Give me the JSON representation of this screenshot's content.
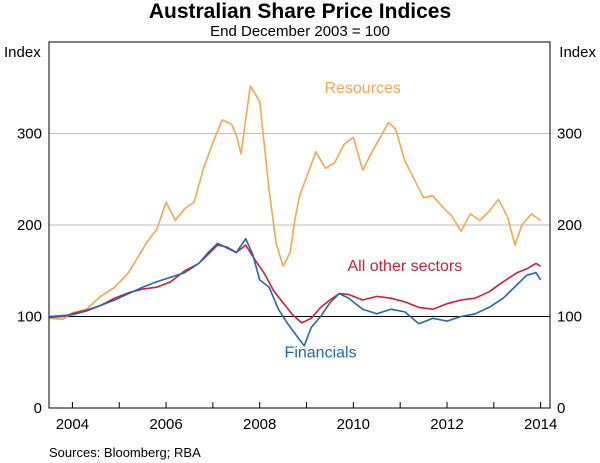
{
  "chart_data": {
    "type": "line",
    "title": "Australian Share Price Indices",
    "subtitle": "End December 2003 = 100",
    "ylabel_left": "Index",
    "ylabel_right": "Index",
    "source": "Sources: Bloomberg; RBA",
    "xlim": [
      2003.5,
      2014.2
    ],
    "ylim": [
      0,
      400
    ],
    "x_ticks": [
      2004,
      2006,
      2008,
      2010,
      2012,
      2014
    ],
    "x_tick_labels": [
      "2004",
      "2006",
      "2008",
      "2010",
      "2012",
      "2014"
    ],
    "y_ticks": [
      0,
      100,
      200,
      300
    ],
    "y_tick_labels": [
      "0",
      "100",
      "200",
      "300"
    ],
    "reference_line": 100,
    "grid": true,
    "series": [
      {
        "name": "Resources",
        "label": "Resources",
        "color": "#f5a64f",
        "x": [
          2003.5,
          2003.8,
          2004.0,
          2004.3,
          2004.6,
          2004.9,
          2005.2,
          2005.4,
          2005.6,
          2005.8,
          2006.0,
          2006.2,
          2006.4,
          2006.6,
          2006.8,
          2007.0,
          2007.2,
          2007.4,
          2007.5,
          2007.6,
          2007.8,
          2008.0,
          2008.2,
          2008.35,
          2008.5,
          2008.65,
          2008.75,
          2008.85,
          2009.0,
          2009.2,
          2009.4,
          2009.6,
          2009.8,
          2010.0,
          2010.2,
          2010.4,
          2010.6,
          2010.75,
          2010.9,
          2011.1,
          2011.3,
          2011.5,
          2011.7,
          2011.9,
          2012.1,
          2012.3,
          2012.5,
          2012.7,
          2012.9,
          2013.1,
          2013.3,
          2013.45,
          2013.6,
          2013.8,
          2014.0
        ],
        "y": [
          98,
          97,
          104,
          108,
          122,
          132,
          148,
          165,
          182,
          195,
          225,
          205,
          218,
          225,
          262,
          290,
          315,
          310,
          298,
          278,
          352,
          335,
          238,
          180,
          155,
          170,
          205,
          232,
          252,
          280,
          262,
          268,
          288,
          296,
          260,
          280,
          298,
          312,
          305,
          270,
          250,
          230,
          232,
          220,
          210,
          193,
          212,
          205,
          215,
          228,
          208,
          178,
          200,
          212,
          205
        ]
      },
      {
        "name": "All other sectors",
        "label": "All other sectors",
        "color": "#d0202e",
        "x": [
          2003.5,
          2003.8,
          2004.0,
          2004.3,
          2004.6,
          2004.9,
          2005.2,
          2005.5,
          2005.8,
          2006.1,
          2006.4,
          2006.7,
          2006.9,
          2007.1,
          2007.3,
          2007.5,
          2007.7,
          2007.9,
          2008.1,
          2008.3,
          2008.5,
          2008.7,
          2008.9,
          2009.1,
          2009.3,
          2009.5,
          2009.7,
          2009.9,
          2010.2,
          2010.5,
          2010.8,
          2011.1,
          2011.4,
          2011.7,
          2012.0,
          2012.3,
          2012.6,
          2012.9,
          2013.2,
          2013.5,
          2013.7,
          2013.9,
          2014.0
        ],
        "y": [
          99,
          100,
          103,
          107,
          112,
          120,
          126,
          130,
          132,
          138,
          150,
          158,
          168,
          178,
          176,
          170,
          178,
          162,
          147,
          128,
          115,
          102,
          93,
          98,
          110,
          118,
          125,
          124,
          118,
          122,
          120,
          116,
          110,
          108,
          114,
          118,
          120,
          127,
          138,
          148,
          152,
          158,
          155
        ]
      },
      {
        "name": "Financials",
        "label": "Financials",
        "color": "#1f68b3",
        "x": [
          2003.5,
          2003.8,
          2004.0,
          2004.3,
          2004.6,
          2004.9,
          2005.2,
          2005.5,
          2005.8,
          2006.1,
          2006.4,
          2006.7,
          2006.9,
          2007.1,
          2007.3,
          2007.5,
          2007.7,
          2007.85,
          2008.0,
          2008.2,
          2008.4,
          2008.6,
          2008.8,
          2008.95,
          2009.1,
          2009.3,
          2009.5,
          2009.7,
          2009.9,
          2010.2,
          2010.5,
          2010.8,
          2011.1,
          2011.4,
          2011.7,
          2012.0,
          2012.3,
          2012.6,
          2012.9,
          2013.2,
          2013.5,
          2013.7,
          2013.9,
          2014.0
        ],
        "y": [
          100,
          101,
          102,
          106,
          112,
          118,
          125,
          132,
          138,
          143,
          148,
          158,
          170,
          180,
          175,
          170,
          185,
          168,
          140,
          132,
          108,
          92,
          78,
          68,
          88,
          100,
          115,
          125,
          120,
          108,
          103,
          108,
          105,
          92,
          98,
          95,
          100,
          103,
          110,
          120,
          135,
          145,
          148,
          140
        ]
      }
    ]
  }
}
